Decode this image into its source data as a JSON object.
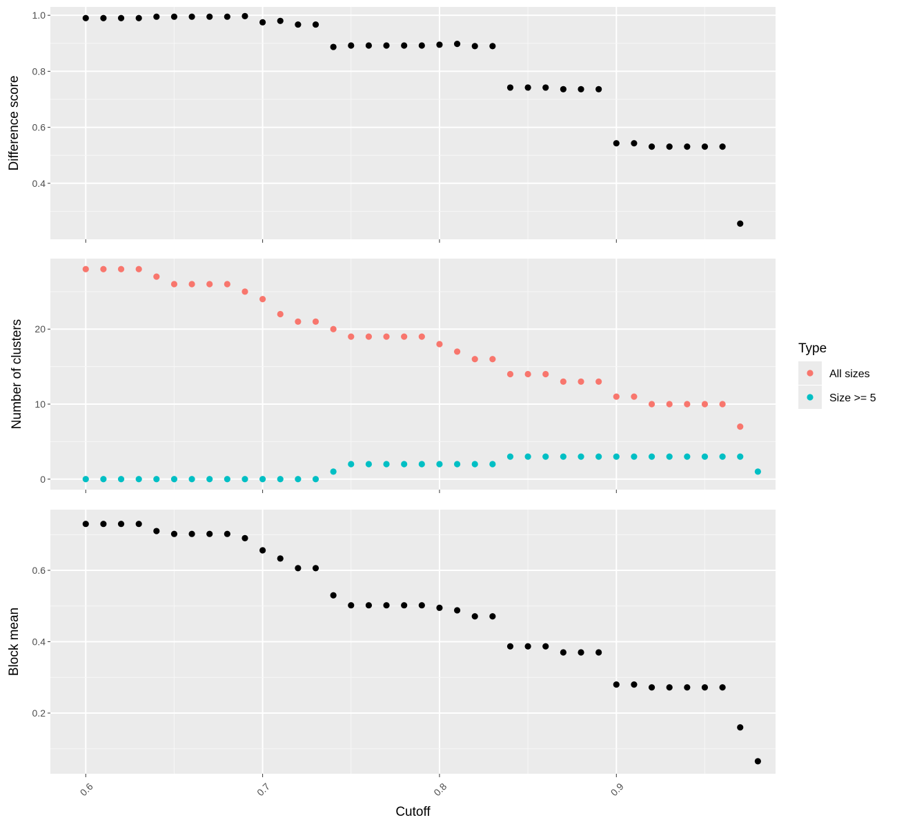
{
  "chart_data": [
    {
      "type": "scatter",
      "title": "",
      "xlabel": "Cutoff",
      "ylabel": "Difference score",
      "xlim": [
        0.58,
        0.99
      ],
      "ylim": [
        0.2,
        1.03
      ],
      "yticks": [
        0.4,
        0.6,
        0.8,
        1.0
      ],
      "ytick_labels": [
        "0.4",
        "0.6",
        "0.8",
        "1.0"
      ],
      "grid": true,
      "series": [
        {
          "color": "#000000",
          "x": [
            0.6,
            0.61,
            0.62,
            0.63,
            0.64,
            0.65,
            0.66,
            0.67,
            0.68,
            0.69,
            0.7,
            0.71,
            0.72,
            0.73,
            0.74,
            0.75,
            0.76,
            0.77,
            0.78,
            0.79,
            0.8,
            0.81,
            0.82,
            0.83,
            0.84,
            0.85,
            0.86,
            0.87,
            0.88,
            0.89,
            0.9,
            0.91,
            0.92,
            0.93,
            0.94,
            0.95,
            0.96,
            0.97
          ],
          "y": [
            0.99,
            0.99,
            0.99,
            0.99,
            0.995,
            0.995,
            0.995,
            0.995,
            0.995,
            0.997,
            0.975,
            0.98,
            0.967,
            0.967,
            0.887,
            0.892,
            0.892,
            0.892,
            0.892,
            0.892,
            0.895,
            0.898,
            0.89,
            0.89,
            0.742,
            0.742,
            0.742,
            0.736,
            0.736,
            0.736,
            0.543,
            0.543,
            0.531,
            0.531,
            0.531,
            0.531,
            0.531,
            0.256
          ]
        }
      ]
    },
    {
      "type": "scatter",
      "title": "",
      "xlabel": "Cutoff",
      "ylabel": "Number of clusters",
      "xlim": [
        0.58,
        0.99
      ],
      "ylim": [
        -1.4,
        29.4
      ],
      "yticks": [
        0,
        10,
        20
      ],
      "ytick_labels": [
        "0",
        "10",
        "20"
      ],
      "grid": true,
      "legend": {
        "title": "Type",
        "placement": "right"
      },
      "series": [
        {
          "name": "All sizes",
          "color": "#F8766D",
          "x": [
            0.6,
            0.61,
            0.62,
            0.63,
            0.64,
            0.65,
            0.66,
            0.67,
            0.68,
            0.69,
            0.7,
            0.71,
            0.72,
            0.73,
            0.74,
            0.75,
            0.76,
            0.77,
            0.78,
            0.79,
            0.8,
            0.81,
            0.82,
            0.83,
            0.84,
            0.85,
            0.86,
            0.87,
            0.88,
            0.89,
            0.9,
            0.91,
            0.92,
            0.93,
            0.94,
            0.95,
            0.96,
            0.97
          ],
          "y": [
            28,
            28,
            28,
            28,
            27,
            26,
            26,
            26,
            26,
            25,
            24,
            22,
            21,
            21,
            20,
            19,
            19,
            19,
            19,
            19,
            18,
            17,
            16,
            16,
            14,
            14,
            14,
            13,
            13,
            13,
            11,
            11,
            10,
            10,
            10,
            10,
            10,
            7
          ]
        },
        {
          "name": "Size >= 5",
          "color": "#00BFC4",
          "x": [
            0.6,
            0.61,
            0.62,
            0.63,
            0.64,
            0.65,
            0.66,
            0.67,
            0.68,
            0.69,
            0.7,
            0.71,
            0.72,
            0.73,
            0.74,
            0.75,
            0.76,
            0.77,
            0.78,
            0.79,
            0.8,
            0.81,
            0.82,
            0.83,
            0.84,
            0.85,
            0.86,
            0.87,
            0.88,
            0.89,
            0.9,
            0.91,
            0.92,
            0.93,
            0.94,
            0.95,
            0.96,
            0.97,
            0.98
          ],
          "y": [
            0,
            0,
            0,
            0,
            0,
            0,
            0,
            0,
            0,
            0,
            0,
            0,
            0,
            0,
            1,
            2,
            2,
            2,
            2,
            2,
            2,
            2,
            2,
            2,
            3,
            3,
            3,
            3,
            3,
            3,
            3,
            3,
            3,
            3,
            3,
            3,
            3,
            3,
            1
          ]
        }
      ]
    },
    {
      "type": "scatter",
      "title": "",
      "xlabel": "Cutoff",
      "ylabel": "Block mean",
      "xlim": [
        0.58,
        0.99
      ],
      "ylim": [
        0.03,
        0.77
      ],
      "yticks": [
        0.2,
        0.4,
        0.6
      ],
      "ytick_labels": [
        "0.2",
        "0.4",
        "0.6"
      ],
      "xticks": [
        0.6,
        0.7,
        0.8,
        0.9
      ],
      "xtick_labels": [
        "0.6",
        "0.7",
        "0.8",
        "0.9"
      ],
      "grid": true,
      "series": [
        {
          "color": "#000000",
          "x": [
            0.6,
            0.61,
            0.62,
            0.63,
            0.64,
            0.65,
            0.66,
            0.67,
            0.68,
            0.69,
            0.7,
            0.71,
            0.72,
            0.73,
            0.74,
            0.75,
            0.76,
            0.77,
            0.78,
            0.79,
            0.8,
            0.81,
            0.82,
            0.83,
            0.84,
            0.85,
            0.86,
            0.87,
            0.88,
            0.89,
            0.9,
            0.91,
            0.92,
            0.93,
            0.94,
            0.95,
            0.96,
            0.97,
            0.98
          ],
          "y": [
            0.73,
            0.73,
            0.73,
            0.73,
            0.71,
            0.702,
            0.702,
            0.702,
            0.702,
            0.69,
            0.656,
            0.633,
            0.606,
            0.606,
            0.53,
            0.502,
            0.502,
            0.502,
            0.502,
            0.502,
            0.495,
            0.488,
            0.471,
            0.471,
            0.387,
            0.387,
            0.387,
            0.37,
            0.37,
            0.37,
            0.28,
            0.28,
            0.272,
            0.272,
            0.272,
            0.272,
            0.272,
            0.16,
            0.065
          ]
        }
      ]
    }
  ]
}
